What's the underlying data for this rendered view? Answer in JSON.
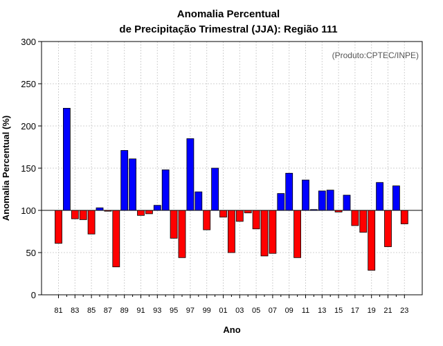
{
  "chart_data": {
    "type": "bar",
    "title": "Anomalia Percentual",
    "subtitle": "de Precipitação Trimestral (JJA): Região 111",
    "xlabel": "Ano",
    "ylabel": "Anomalia Percentual (%)",
    "source_note": "(Produto:CPTEC/INPE)",
    "ylim": [
      0,
      300
    ],
    "yticks": [
      0,
      50,
      100,
      150,
      200,
      250,
      300
    ],
    "baseline": 100,
    "grid": true,
    "categories": [
      "81",
      "82",
      "83",
      "84",
      "85",
      "86",
      "87",
      "88",
      "89",
      "90",
      "91",
      "92",
      "93",
      "94",
      "95",
      "96",
      "97",
      "98",
      "99",
      "00",
      "01",
      "02",
      "03",
      "04",
      "05",
      "06",
      "07",
      "08",
      "09",
      "10",
      "11",
      "12",
      "13",
      "14",
      "15",
      "16",
      "17",
      "18",
      "19",
      "20",
      "21",
      "22",
      "23"
    ],
    "xtick_labels": [
      "81",
      "83",
      "85",
      "87",
      "89",
      "91",
      "93",
      "95",
      "97",
      "99",
      "01",
      "03",
      "05",
      "07",
      "09",
      "11",
      "13",
      "15",
      "17",
      "19",
      "21",
      "23"
    ],
    "values": [
      61,
      221,
      90,
      89,
      72,
      103,
      99,
      33,
      171,
      161,
      94,
      96,
      106,
      148,
      67,
      44,
      185,
      122,
      77,
      150,
      92,
      50,
      87,
      97,
      78,
      46,
      49,
      120,
      144,
      44,
      136,
      101,
      123,
      124,
      98,
      118,
      82,
      74,
      29,
      133,
      57,
      129,
      84
    ],
    "colors": {
      "above": "#0000ff",
      "below": "#ff0000"
    }
  }
}
